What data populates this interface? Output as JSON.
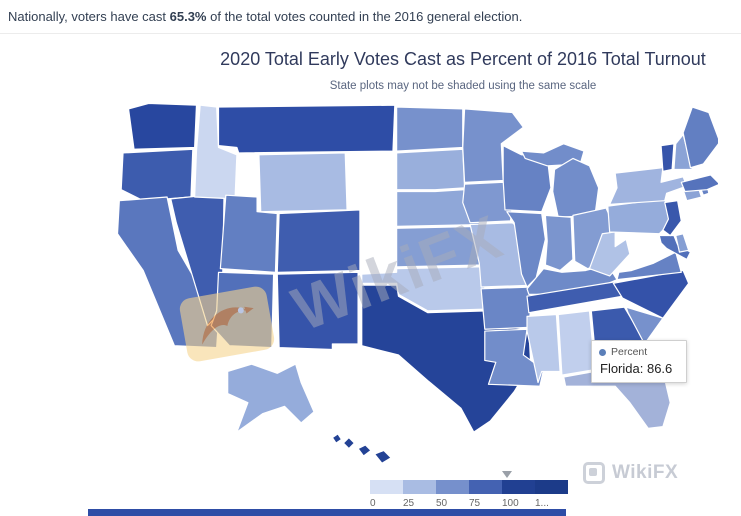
{
  "header": {
    "summary_prefix": "Nationally, voters have cast ",
    "summary_value": "65.3%",
    "summary_suffix": " of the total votes counted in the 2016 general election."
  },
  "chart": {
    "title": "2020 Total Early Votes Cast as Percent of 2016 Total Turnout",
    "subtitle": "State plots may not be shaded using the same scale"
  },
  "tooltip": {
    "series_label": "Percent",
    "state": "Florida",
    "value": 86.6,
    "text": "Florida: 86.6"
  },
  "legend": {
    "labels": [
      "0",
      "25",
      "50",
      "75",
      "100",
      "1..."
    ]
  },
  "watermarks": {
    "map_text": "WikiFX",
    "corner_text": "WikiFX"
  },
  "chart_data": {
    "type": "heatmap",
    "subtype": "us-state-choropleth",
    "title": "2020 Total Early Votes Cast as Percent of 2016 Total Turnout",
    "subtitle": "State plots may not be shaded using the same scale",
    "series_name": "Percent",
    "unit": "2020 early votes as percent of 2016 total turnout",
    "national_value": 65.3,
    "hovered_state": "Florida",
    "hovered_value": 86.6,
    "legend_ticks": [
      0,
      25,
      50,
      75,
      100,
      125
    ],
    "color_scale": {
      "stops": [
        [
          0,
          "#e9eef9"
        ],
        [
          25,
          "#c3d1ee"
        ],
        [
          50,
          "#8fa7d8"
        ],
        [
          75,
          "#5c79bf"
        ],
        [
          100,
          "#2c4ba5"
        ],
        [
          125,
          "#16357e"
        ]
      ]
    },
    "states": [
      {
        "code": "WA",
        "name": "Washington",
        "value": 104
      },
      {
        "code": "OR",
        "name": "Oregon",
        "value": 91
      },
      {
        "code": "CA",
        "name": "California",
        "value": 76
      },
      {
        "code": "NV",
        "name": "Nevada",
        "value": 90
      },
      {
        "code": "ID",
        "name": "Idaho",
        "value": 20
      },
      {
        "code": "MT",
        "name": "Montana",
        "value": 99
      },
      {
        "code": "WY",
        "name": "Wyoming",
        "value": 38
      },
      {
        "code": "UT",
        "name": "Utah",
        "value": 72
      },
      {
        "code": "CO",
        "name": "Colorado",
        "value": 90
      },
      {
        "code": "AZ",
        "name": "Arizona",
        "value": 80
      },
      {
        "code": "NM",
        "name": "New Mexico",
        "value": 95
      },
      {
        "code": "ND",
        "name": "North Dakota",
        "value": 62
      },
      {
        "code": "SD",
        "name": "South Dakota",
        "value": 45
      },
      {
        "code": "NE",
        "name": "Nebraska",
        "value": 50
      },
      {
        "code": "KS",
        "name": "Kansas",
        "value": 55
      },
      {
        "code": "OK",
        "name": "Oklahoma",
        "value": 30
      },
      {
        "code": "TX",
        "name": "Texas",
        "value": 108
      },
      {
        "code": "MN",
        "name": "Minnesota",
        "value": 62
      },
      {
        "code": "IA",
        "name": "Iowa",
        "value": 58
      },
      {
        "code": "MO",
        "name": "Missouri",
        "value": 38
      },
      {
        "code": "AR",
        "name": "Arkansas",
        "value": 68
      },
      {
        "code": "LA",
        "name": "Louisiana",
        "value": 64
      },
      {
        "code": "WI",
        "name": "Wisconsin",
        "value": 70
      },
      {
        "code": "IL",
        "name": "Illinois",
        "value": 67
      },
      {
        "code": "MI",
        "name": "Michigan",
        "value": 64
      },
      {
        "code": "IN",
        "name": "Indiana",
        "value": 60
      },
      {
        "code": "OH",
        "name": "Ohio",
        "value": 56
      },
      {
        "code": "KY",
        "name": "Kentucky",
        "value": 66
      },
      {
        "code": "TN",
        "name": "Tennessee",
        "value": 90
      },
      {
        "code": "MS",
        "name": "Mississippi",
        "value": 30
      },
      {
        "code": "AL",
        "name": "Alabama",
        "value": 26
      },
      {
        "code": "GA",
        "name": "Georgia",
        "value": 92
      },
      {
        "code": "FL",
        "name": "Florida",
        "value": 86.6
      },
      {
        "code": "SC",
        "name": "South Carolina",
        "value": 62
      },
      {
        "code": "NC",
        "name": "North Carolina",
        "value": 96
      },
      {
        "code": "VA",
        "name": "Virginia",
        "value": 70
      },
      {
        "code": "WV",
        "name": "West Virginia",
        "value": 34
      },
      {
        "code": "MD",
        "name": "Maryland",
        "value": 80
      },
      {
        "code": "DE",
        "name": "Delaware",
        "value": 55
      },
      {
        "code": "PA",
        "name": "Pennsylvania",
        "value": 47
      },
      {
        "code": "NJ",
        "name": "New Jersey",
        "value": 93
      },
      {
        "code": "NY",
        "name": "New York",
        "value": 42
      },
      {
        "code": "CT",
        "name": "Connecticut",
        "value": 52
      },
      {
        "code": "RI",
        "name": "Rhode Island",
        "value": 70
      },
      {
        "code": "MA",
        "name": "Massachusetts",
        "value": 78
      },
      {
        "code": "VT",
        "name": "Vermont",
        "value": 95
      },
      {
        "code": "NH",
        "name": "New Hampshire",
        "value": 52
      },
      {
        "code": "ME",
        "name": "Maine",
        "value": 72
      },
      {
        "code": "AK",
        "name": "Alaska",
        "value": 47
      },
      {
        "code": "HI",
        "name": "Hawaii",
        "value": 110
      }
    ]
  }
}
